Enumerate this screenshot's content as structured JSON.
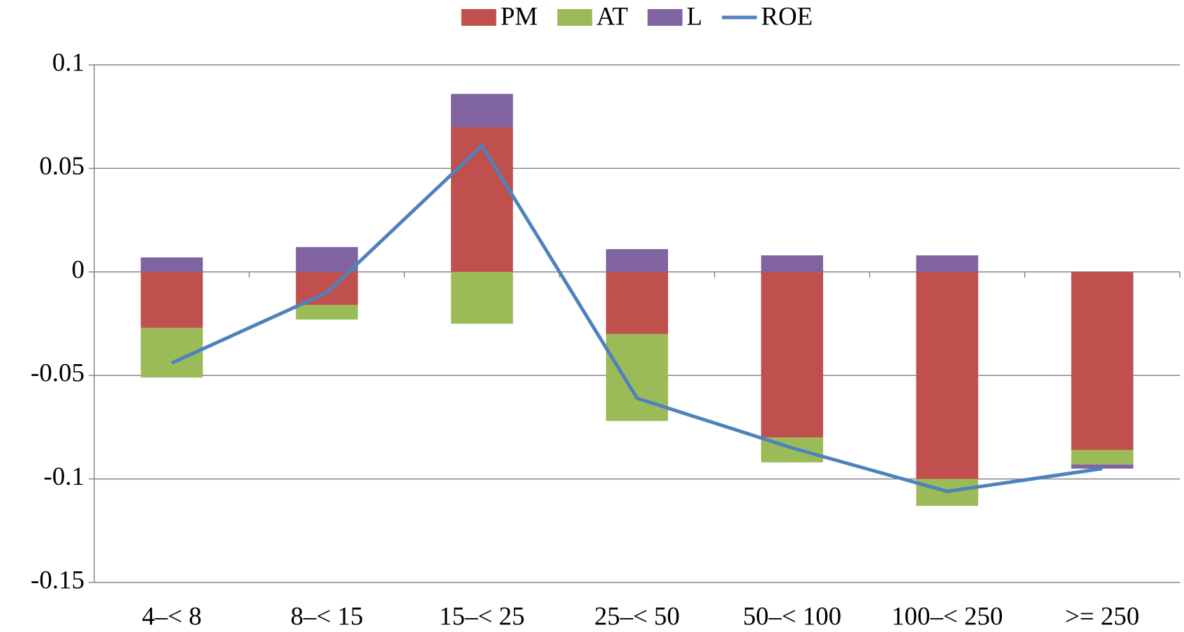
{
  "chart_data": {
    "type": "stacked-bar-line",
    "categories": [
      "4–< 8",
      "8–< 15",
      "15–< 25",
      "25–< 50",
      "50–< 100",
      "100–< 250",
      ">= 250"
    ],
    "series": [
      {
        "name": "PM",
        "color": "#c0504d",
        "kind": "bar",
        "values": [
          -0.027,
          -0.016,
          0.07,
          -0.03,
          -0.08,
          -0.1,
          -0.086
        ]
      },
      {
        "name": "AT",
        "color": "#9bbb59",
        "kind": "bar",
        "values": [
          -0.024,
          -0.007,
          -0.025,
          -0.042,
          -0.012,
          -0.013,
          -0.007
        ]
      },
      {
        "name": "L",
        "color": "#8064a2",
        "kind": "bar",
        "values": [
          0.007,
          0.012,
          0.016,
          0.011,
          0.008,
          0.008,
          -0.002
        ]
      },
      {
        "name": "ROE",
        "color": "#4f81bd",
        "kind": "line",
        "values": [
          -0.044,
          -0.01,
          0.061,
          -0.061,
          -0.085,
          -0.106,
          -0.095
        ]
      }
    ],
    "ylim": [
      -0.15,
      0.1
    ],
    "yticks": [
      -0.15,
      -0.1,
      -0.05,
      0,
      0.05,
      0.1
    ],
    "grid": true,
    "legend": "top"
  }
}
